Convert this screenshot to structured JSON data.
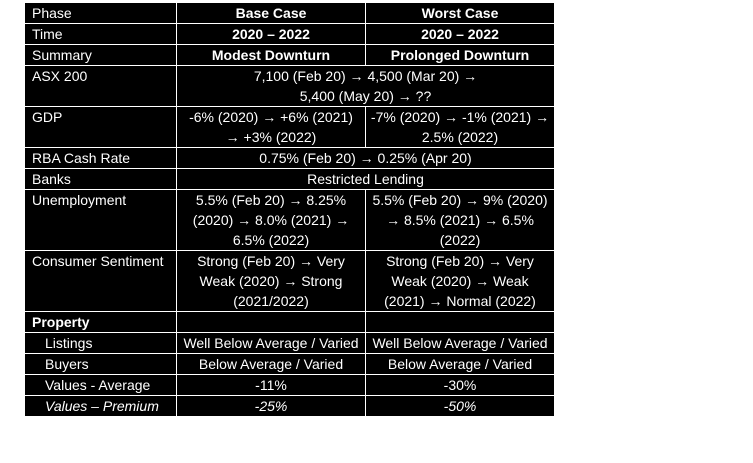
{
  "headers": {
    "label": "Phase",
    "base": "Base Case",
    "worst": "Worst Case"
  },
  "time": {
    "label": "Time",
    "base": "2020 – 2022",
    "worst": "2020 – 2022"
  },
  "summary": {
    "label": "Summary",
    "base": "Modest Downturn",
    "worst": "Prolonged Downturn"
  },
  "asx": {
    "label": "ASX 200",
    "value": "7,100 (Feb 20) → 4,500 (Mar 20) → 5,400 (May 20) → ??"
  },
  "gdp": {
    "label": "GDP",
    "base": "-6% (2020) → +6% (2021) → +3% (2022)",
    "worst": "-7% (2020) → -1% (2021) → 2.5% (2022)"
  },
  "rba": {
    "label": "RBA Cash Rate",
    "value": "0.75% (Feb 20) → 0.25% (Apr 20)"
  },
  "banks": {
    "label": "Banks",
    "value": "Restricted Lending"
  },
  "unemployment": {
    "label": "Unemployment",
    "base": "5.5% (Feb 20) → 8.25% (2020) → 8.0% (2021) → 6.5% (2022)",
    "worst": "5.5% (Feb 20) → 9% (2020) → 8.5% (2021) → 6.5% (2022)"
  },
  "sentiment": {
    "label": "Consumer Sentiment",
    "base": "Strong (Feb 20) → Very Weak (2020) → Strong (2021/2022)",
    "worst": "Strong (Feb 20) → Very Weak (2020) → Weak (2021) → Normal (2022)"
  },
  "property": {
    "label": "Property"
  },
  "listings": {
    "label": "Listings",
    "base": "Well Below Average / Varied",
    "worst": "Well Below Average / Varied"
  },
  "buyers": {
    "label": "Buyers",
    "base": "Below Average / Varied",
    "worst": "Below Average / Varied"
  },
  "values_avg": {
    "label": "Values - Average",
    "base": "-11%",
    "worst": "-30%"
  },
  "values_premium": {
    "label": "Values – Premium",
    "base": "-25%",
    "worst": "-50%"
  }
}
